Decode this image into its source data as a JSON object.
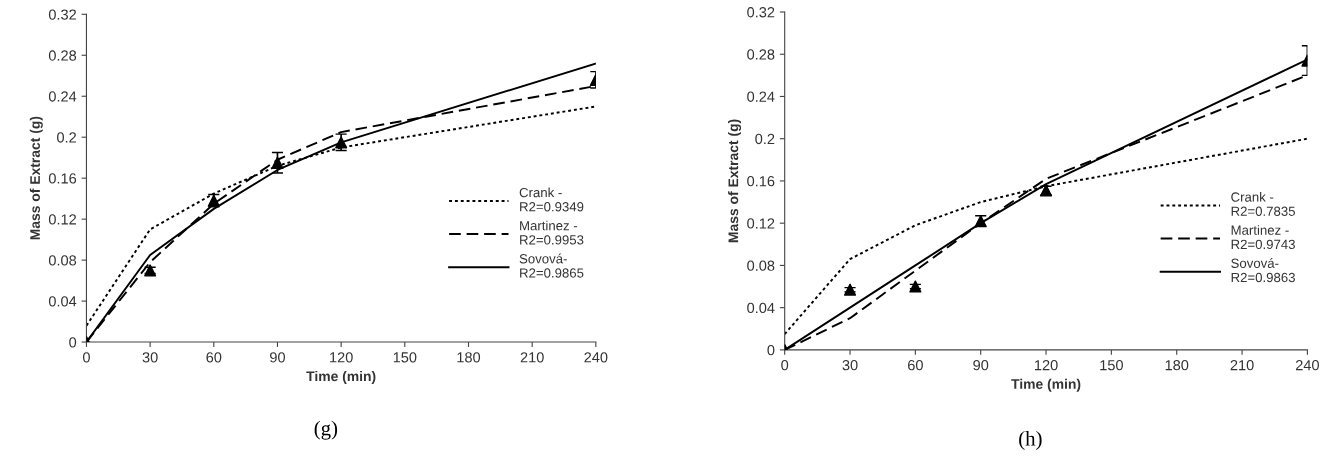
{
  "chart_data": [
    {
      "type": "line",
      "xlabel": "Time (min)",
      "ylabel": "Mass of Extract (g)",
      "annotations": [
        "(g)"
      ],
      "x": [
        0,
        30,
        60,
        90,
        120,
        240
      ],
      "xlim": [
        0,
        240
      ],
      "xticks": [
        0,
        30,
        60,
        90,
        120,
        150,
        180,
        210,
        240
      ],
      "ylim": [
        0,
        0.32
      ],
      "yticks": [
        0,
        0.04,
        0.08,
        0.12,
        0.16,
        0.2,
        0.24,
        0.28,
        0.32
      ],
      "grid": false,
      "legend": "right",
      "marker": "none",
      "series": [
        {
          "name": "Crank -\nR2=0.9349",
          "color": "#000000",
          "line_style": "dotted",
          "values": [
            0.016,
            0.11,
            0.145,
            0.172,
            0.19,
            0.23
          ]
        },
        {
          "name": "Martinez -\nR2=0.9953",
          "color": "#000000",
          "line_style": "dashed",
          "values": [
            0,
            0.078,
            0.135,
            0.178,
            0.205,
            0.25
          ]
        },
        {
          "name": "Sovová-\nR2=0.9865",
          "color": "#000000",
          "line_style": "solid",
          "values": [
            0,
            0.085,
            0.13,
            0.168,
            0.195,
            0.272
          ]
        },
        {
          "type": "scatter",
          "color": "#000000",
          "marker": "triangle",
          "values": [
            0,
            0.07,
            0.138,
            0.175,
            0.195,
            0.256
          ],
          "errors": [
            null,
            0.003,
            0.006,
            0.01,
            0.008,
            0.008
          ]
        }
      ]
    },
    {
      "type": "line",
      "xlabel": "Time (min)",
      "ylabel": "Mass of Extract (g)",
      "annotations": [
        "(h)"
      ],
      "x": [
        0,
        30,
        60,
        90,
        120,
        240
      ],
      "xlim": [
        0,
        240
      ],
      "xticks": [
        0,
        30,
        60,
        90,
        120,
        150,
        180,
        210,
        240
      ],
      "ylim": [
        0,
        0.32
      ],
      "yticks": [
        0,
        0.04,
        0.08,
        0.12,
        0.16,
        0.2,
        0.24,
        0.28,
        0.32
      ],
      "grid": false,
      "legend": "right",
      "marker": "none",
      "series": [
        {
          "name": "Crank -\nR2=0.7835",
          "color": "#000000",
          "line_style": "dotted",
          "values": [
            0.015,
            0.086,
            0.118,
            0.14,
            0.155,
            0.2
          ]
        },
        {
          "name": "Martinez -\nR2=0.9743",
          "color": "#000000",
          "line_style": "dashed",
          "values": [
            0,
            0.03,
            0.075,
            0.12,
            0.162,
            0.26
          ]
        },
        {
          "name": "Sovová-\nR2=0.9863",
          "color": "#000000",
          "line_style": "solid",
          "values": [
            0,
            0.04,
            0.08,
            0.12,
            0.157,
            0.275
          ]
        },
        {
          "type": "scatter",
          "color": "#000000",
          "marker": "triangle",
          "values": [
            0,
            0.057,
            0.06,
            0.122,
            0.151,
            0.274
          ],
          "errors": [
            null,
            0.002,
            0.002,
            0.005,
            0.004,
            0.014
          ]
        }
      ]
    }
  ]
}
